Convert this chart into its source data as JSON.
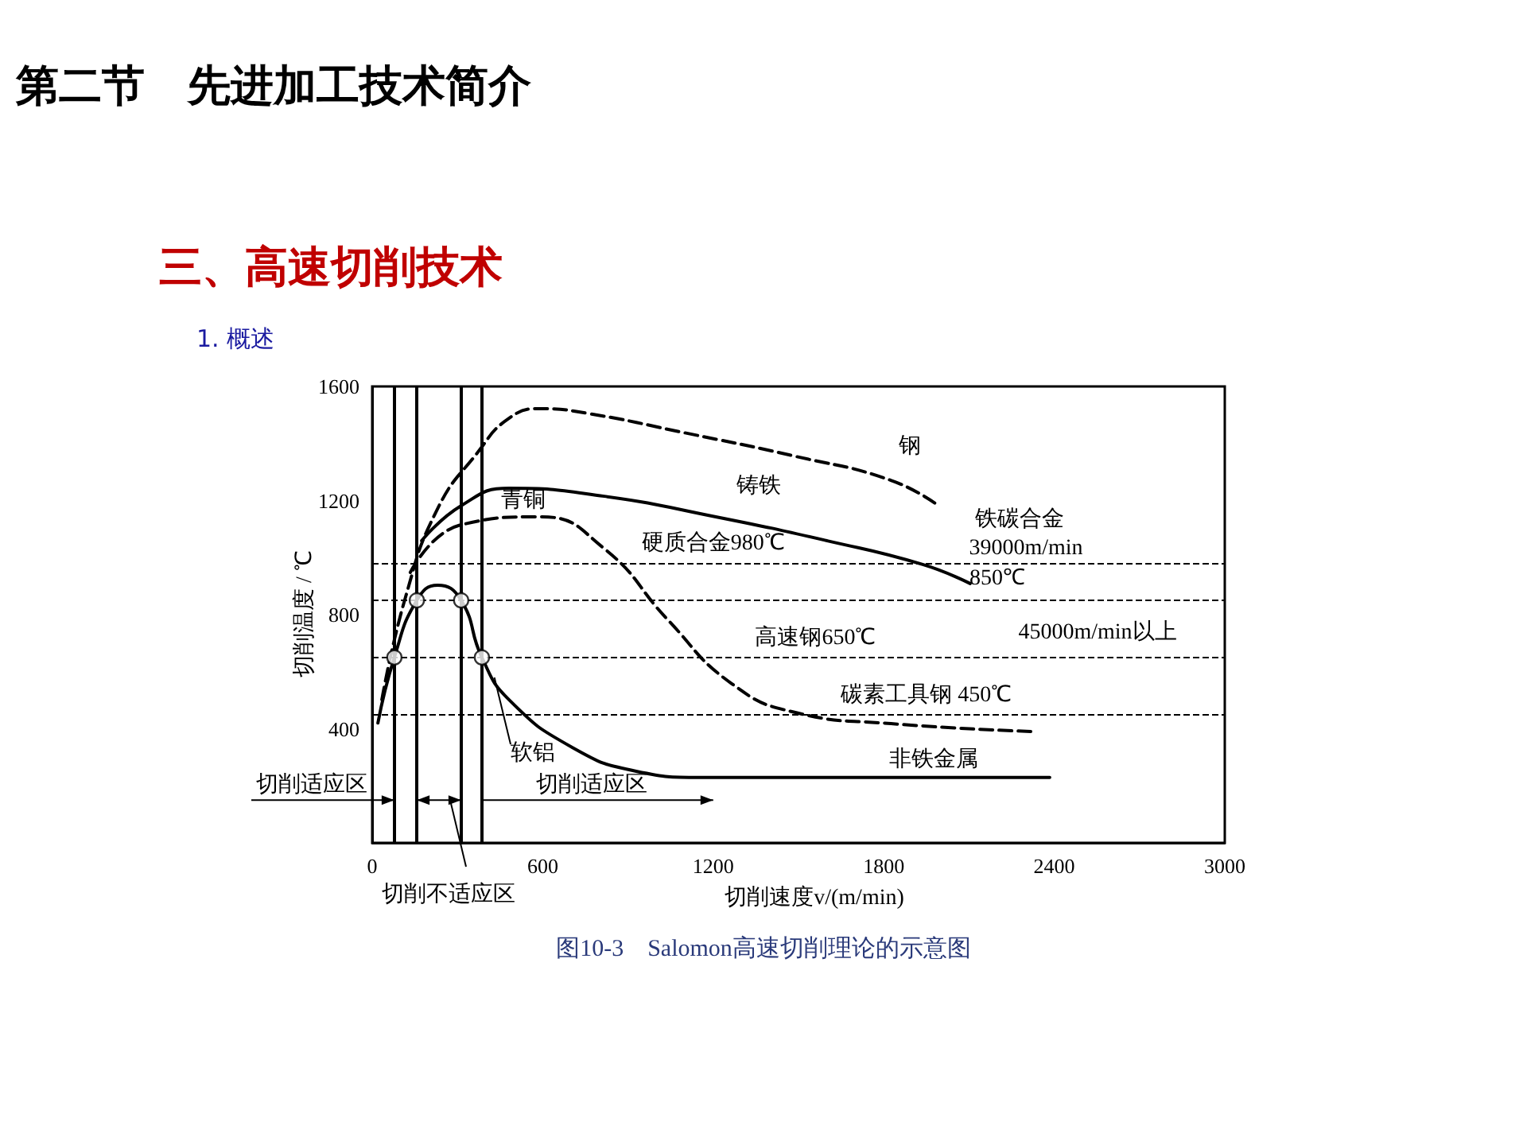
{
  "chart_data": {
    "type": "line",
    "title": "第二节　先进加工技术简介",
    "subtitle": "三、高速切削技术",
    "xlabel": "切削速度v/(m/min)",
    "ylabel": "切削温度 / ℃",
    "xlim": [
      0,
      3000
    ],
    "xticks": [
      0,
      600,
      1200,
      1800,
      2400,
      3000
    ],
    "ylim": [
      0,
      1600
    ],
    "yticks": [
      400,
      800,
      1200,
      1600
    ],
    "grid": false,
    "marker": "none",
    "series": [
      {
        "color": "#000000",
        "line_style": "dashed",
        "x": [
          34,
          118,
          230,
          369,
          481,
          593,
          761,
          1097,
          1489,
          1825,
          1993
        ],
        "values": [
          502,
          864,
          1171,
          1366,
          1488,
          1522,
          1505,
          1438,
          1355,
          1271,
          1182
        ]
      },
      {
        "color": "#000000",
        "line_style": "solid",
        "x": [
          174,
          313,
          481,
          817,
          1209,
          1601,
          1937,
          2104
        ],
        "values": [
          1059,
          1182,
          1243,
          1215,
          1143,
          1059,
          976,
          909
        ]
      },
      {
        "color": "#000000",
        "line_style": "dashed",
        "x": [
          134,
          313,
          593,
          817,
          1041,
          1265,
          1489,
          1825,
          2328
        ],
        "values": [
          948,
          1115,
          1143,
          1031,
          781,
          558,
          457,
          418,
          390
        ]
      },
      {
        "color": "#000000",
        "line_style": "solid",
        "x": [
          20,
          78,
          157,
          230,
          313,
          386,
          481,
          705,
          929,
          1153,
          2384
        ],
        "values": [
          420,
          650,
          850,
          903,
          850,
          650,
          502,
          334,
          251,
          229,
          229
        ]
      },
      {
        "type": "scatter",
        "marker": "circle",
        "color": "#000000",
        "x": [
          78,
          157,
          313,
          386
        ],
        "values": [
          650,
          850,
          850,
          650
        ]
      }
    ],
    "ref_lines": [
      {
        "axis": "y",
        "value": 980,
        "label": "硬质合金980℃"
      },
      {
        "axis": "y",
        "value": 850
      },
      {
        "axis": "y",
        "value": 650,
        "label": "高速钢650℃"
      },
      {
        "axis": "y",
        "value": 450,
        "label": "碳素工具钢 450℃"
      },
      {
        "axis": "x",
        "value": 78,
        "line_style": "solid"
      },
      {
        "axis": "x",
        "value": 157,
        "line_style": "solid"
      },
      {
        "axis": "x",
        "value": 313,
        "line_style": "solid"
      },
      {
        "axis": "x",
        "value": 386,
        "line_style": "solid"
      }
    ],
    "annotations": [
      "1. 概述",
      "切削适应区",
      "切削不适应区",
      "图10-3　Salomon高速切削理论的示意图",
      "钢",
      "铸铁",
      "青铜",
      "铁碳合金",
      "39000m/min",
      "850℃",
      "45000m/min以上",
      {
        "text": "软铝",
        "x": 430,
        "y": 580
      },
      "非铁金属",
      "切削适应区"
    ]
  }
}
